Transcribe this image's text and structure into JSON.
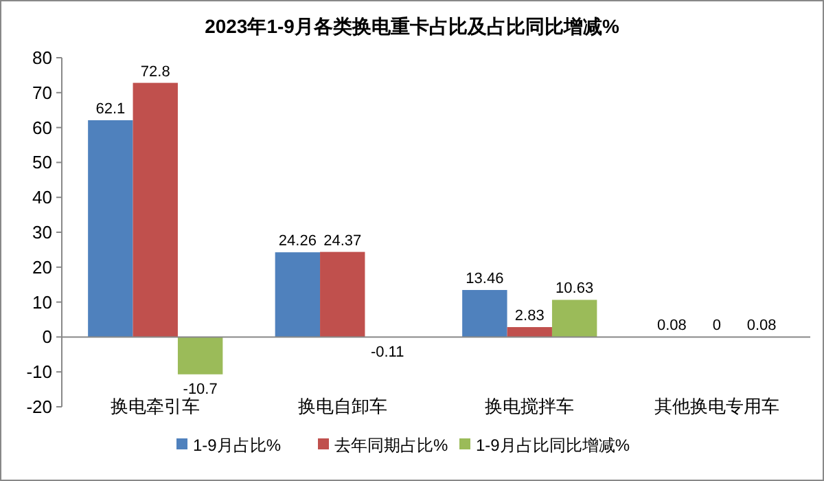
{
  "chart_data": {
    "type": "bar",
    "title": "2023年1-9月各类换电重卡占比及占比同比增减%",
    "categories": [
      "换电牵引车",
      "换电自卸车",
      "换电搅拌车",
      "其他换电专用车"
    ],
    "series": [
      {
        "name": "1-9月占比%",
        "color": "#4f81bd",
        "values": [
          62.1,
          24.26,
          13.46,
          0.08
        ]
      },
      {
        "name": "去年同期占比%",
        "color": "#c0504d",
        "values": [
          72.8,
          24.37,
          2.83,
          0
        ]
      },
      {
        "name": "1-9月占比同比增减%",
        "color": "#9bbb59",
        "values": [
          -10.7,
          -0.11,
          10.63,
          0.08
        ]
      }
    ],
    "ylim": [
      -20,
      80
    ],
    "yticks": [
      -20,
      -10,
      0,
      10,
      20,
      30,
      40,
      50,
      60,
      70,
      80
    ],
    "data_labels": true,
    "legend": "bottom"
  }
}
